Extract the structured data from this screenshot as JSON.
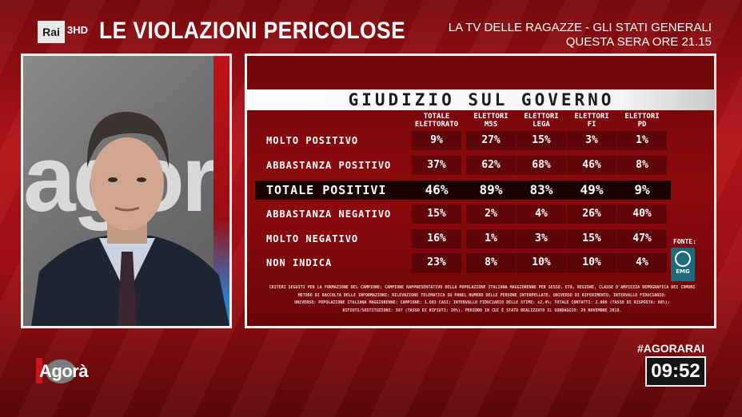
{
  "header": {
    "channel_logo": "Rai",
    "channel_number": "3HD",
    "title": "LE VIOLAZIONI PERICOLOSE",
    "promo_line1": "LA TV DELLE RAGAZZE - GLI STATI GENERALI",
    "promo_line2": "QUESTA SERA ORE 21.15"
  },
  "video": {
    "background_logo": "agorà",
    "subject": "man-in-suit-portrait"
  },
  "poll": {
    "title": "GIUDIZIO SUL GOVERNO",
    "columns": [
      {
        "line1": "TOTALE",
        "line2": "ELETTORATO"
      },
      {
        "line1": "ELETTORI",
        "line2": "M5S"
      },
      {
        "line1": "ELETTORI",
        "line2": "LEGA"
      },
      {
        "line1": "ELETTORI",
        "line2": "FI"
      },
      {
        "line1": "ELETTORI",
        "line2": "PD"
      }
    ],
    "rows": [
      {
        "label": "MOLTO POSITIVO",
        "values": [
          "9%",
          "27%",
          "15%",
          "3%",
          "1%"
        ]
      },
      {
        "label": "ABBASTANZA POSITIVO",
        "values": [
          "37%",
          "62%",
          "68%",
          "46%",
          "8%"
        ]
      },
      {
        "label": "TOTALE POSITIVI",
        "values": [
          "46%",
          "89%",
          "83%",
          "49%",
          "9%"
        ]
      },
      {
        "label": "ABBASTANZA NEGATIVO",
        "values": [
          "15%",
          "2%",
          "4%",
          "26%",
          "40%"
        ]
      },
      {
        "label": "MOLTO NEGATIVO",
        "values": [
          "16%",
          "1%",
          "3%",
          "15%",
          "47%"
        ]
      },
      {
        "label": "NON INDICA",
        "values": [
          "23%",
          "8%",
          "10%",
          "10%",
          "4%"
        ]
      }
    ],
    "source_label": "FONTE:",
    "source_logo": "EMG",
    "methodology": [
      "CRITERI SEGUITI PER LA FORMAZIONE DEL CAMPIONE: CAMPIONE RAPPRESENTATIVO DELLA POPOLAZIONE ITALIANA MAGGIORENNE PER SESSO, ETÀ, REGIONE, CLASSE D'AMPIEZZA DEMOGRAFICA DEI COMUNI",
      "METODO DI RACCOLTA DELLE INFORMAZIONI: RILEVAZIONE TELEMATICA SU PANEL NUMERO DELLE PERSONE INTERPELLATE, UNIVERSO DI RIFERIMENTO, INTERVALLO FIDUCIARIO:",
      "UNIVERSO: POPOLAZIONE ITALIANA MAGGIORENNE; CAMPIONE: 1.603 CASI; INTERVALLO FIDUCIARIO DELLE STIME: ±2,4%; TOTALE CONTATTI: 2.000 (TASSO DI RISPOSTA: 80%);",
      "RIFIUTI/SOSTITUZIONI: 397 (TASSO DI RIFIUTI: 20%). PERIODO IN CUI È STATO REALIZZATO IL SONDAGGIO: 29 NOVEMBRE 2018."
    ]
  },
  "footer": {
    "show_logo": "Agorà",
    "hashtag": "#AGORARAI",
    "clock": "09:52"
  },
  "colors": {
    "brand_red": "#b5141a",
    "panel_red": "#8e0a0e",
    "border_white": "#f0f0f0"
  }
}
